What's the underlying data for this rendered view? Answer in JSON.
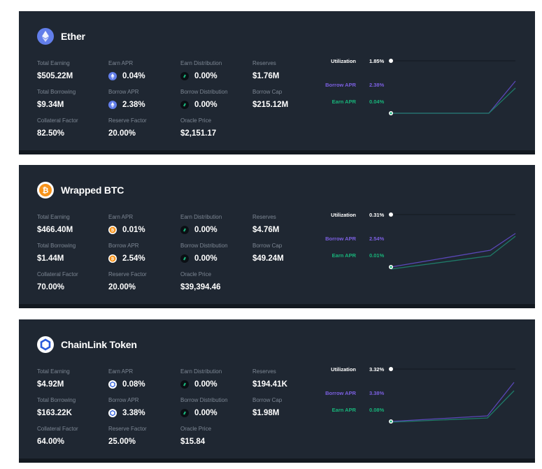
{
  "colors": {
    "card_bg": "#1f2732",
    "borrow": "#7b5fe0",
    "earn": "#18b47a",
    "label": "#7d8794"
  },
  "labels": {
    "total_earning": "Total Earning",
    "earn_apr": "Earn APR",
    "earn_distribution": "Earn Distribution",
    "reserves": "Reserves",
    "total_borrowing": "Total Borrowing",
    "borrow_apr": "Borrow APR",
    "borrow_distribution": "Borrow Distribution",
    "borrow_cap": "Borrow Cap",
    "collateral_factor": "Collateral Factor",
    "reserve_factor": "Reserve Factor",
    "oracle_price": "Oracle Price",
    "utilization": "Utilization",
    "chart_borrow_apr": "Borrow APR",
    "chart_earn_apr": "Earn APR"
  },
  "markets": [
    {
      "name": "Ether",
      "icon": "ether-icon",
      "icon_color": "#627eea",
      "total_earning": "$505.22M",
      "earn_apr": "0.04%",
      "earn_distribution": "0.00%",
      "reserves": "$1.76M",
      "total_borrowing": "$9.34M",
      "borrow_apr": "2.38%",
      "borrow_distribution": "0.00%",
      "borrow_cap": "$215.12M",
      "collateral_factor": "82.50%",
      "reserve_factor": "20.00%",
      "oracle_price": "$2,151.17",
      "utilization": "1.85%",
      "chart_borrow_apr": "2.38%",
      "chart_earn_apr": "0.04%"
    },
    {
      "name": "Wrapped BTC",
      "icon": "bitcoin-icon",
      "icon_color": "#f7931a",
      "total_earning": "$466.40M",
      "earn_apr": "0.01%",
      "earn_distribution": "0.00%",
      "reserves": "$4.76M",
      "total_borrowing": "$1.44M",
      "borrow_apr": "2.54%",
      "borrow_distribution": "0.00%",
      "borrow_cap": "$49.24M",
      "collateral_factor": "70.00%",
      "reserve_factor": "20.00%",
      "oracle_price": "$39,394.46",
      "utilization": "0.31%",
      "chart_borrow_apr": "2.54%",
      "chart_earn_apr": "0.01%"
    },
    {
      "name": "ChainLink Token",
      "icon": "chainlink-icon",
      "icon_color": "#2a5ada",
      "total_earning": "$4.92M",
      "earn_apr": "0.08%",
      "earn_distribution": "0.00%",
      "reserves": "$194.41K",
      "total_borrowing": "$163.22K",
      "borrow_apr": "3.38%",
      "borrow_distribution": "0.00%",
      "borrow_cap": "$1.98M",
      "collateral_factor": "64.00%",
      "reserve_factor": "25.00%",
      "oracle_price": "$15.84",
      "utilization": "3.32%",
      "chart_borrow_apr": "3.38%",
      "chart_earn_apr": "0.08%"
    }
  ]
}
